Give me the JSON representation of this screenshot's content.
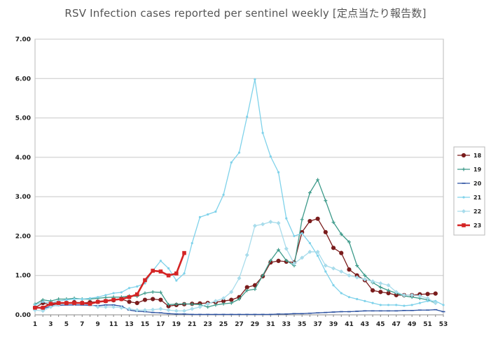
{
  "chart_data": {
    "type": "line",
    "title": "RSV Infection cases reported per sentinel weekly [定点当たり報告数]",
    "xlabel": "",
    "ylabel": "",
    "xlim": [
      1,
      53
    ],
    "ylim": [
      0,
      7
    ],
    "x_ticks": [
      1,
      3,
      5,
      7,
      9,
      11,
      13,
      15,
      17,
      19,
      21,
      23,
      25,
      27,
      29,
      31,
      33,
      35,
      37,
      39,
      41,
      43,
      45,
      47,
      49,
      51,
      53
    ],
    "y_ticks": [
      "0.00",
      "1.00",
      "2.00",
      "3.00",
      "4.00",
      "5.00",
      "6.00",
      "7.00"
    ],
    "grid": "horizontal",
    "legend_position": "right",
    "series": [
      {
        "name": "18",
        "color": "#7a1c1c",
        "marker": "circle",
        "values": [
          0.18,
          0.3,
          0.25,
          0.28,
          0.3,
          0.32,
          0.3,
          0.32,
          0.33,
          0.35,
          0.37,
          0.4,
          0.33,
          0.3,
          0.38,
          0.4,
          0.38,
          0.22,
          0.25,
          0.27,
          0.28,
          0.29,
          0.3,
          0.32,
          0.35,
          0.38,
          0.45,
          0.7,
          0.75,
          0.98,
          1.33,
          1.37,
          1.35,
          1.33,
          2.1,
          2.38,
          2.44,
          2.1,
          1.7,
          1.57,
          1.15,
          1.0,
          0.88,
          0.62,
          0.58,
          0.55,
          0.5,
          0.5,
          0.5,
          0.52,
          0.53,
          0.54
        ]
      },
      {
        "name": "19",
        "color": "#3d9a8a",
        "marker": "cross",
        "values": [
          0.27,
          0.38,
          0.35,
          0.4,
          0.4,
          0.42,
          0.4,
          0.4,
          0.42,
          0.44,
          0.45,
          0.45,
          0.48,
          0.47,
          0.55,
          0.58,
          0.57,
          0.26,
          0.27,
          0.28,
          0.27,
          0.26,
          0.2,
          0.25,
          0.28,
          0.3,
          0.4,
          0.62,
          0.65,
          1.0,
          1.38,
          1.65,
          1.38,
          1.25,
          2.42,
          3.1,
          3.43,
          2.9,
          2.35,
          2.05,
          1.85,
          1.25,
          1.0,
          0.82,
          0.7,
          0.62,
          0.55,
          0.48,
          0.45,
          0.42,
          0.38,
          0.3
        ]
      },
      {
        "name": "20",
        "color": "#2a50a0",
        "marker": "dash",
        "values": [
          0.2,
          0.15,
          0.22,
          0.24,
          0.25,
          0.25,
          0.25,
          0.24,
          0.23,
          0.25,
          0.25,
          0.22,
          0.12,
          0.09,
          0.08,
          0.06,
          0.05,
          0.03,
          0.02,
          0.02,
          0.01,
          0.01,
          0.01,
          0.01,
          0.01,
          0.01,
          0.01,
          0.01,
          0.01,
          0.01,
          0.01,
          0.02,
          0.02,
          0.03,
          0.03,
          0.04,
          0.05,
          0.06,
          0.07,
          0.08,
          0.08,
          0.09,
          0.1,
          0.1,
          0.1,
          0.1,
          0.1,
          0.11,
          0.11,
          0.12,
          0.12,
          0.13,
          0.08
        ]
      },
      {
        "name": "21",
        "color": "#7fd2ea",
        "marker": "dot",
        "values": [
          0.25,
          0.33,
          0.3,
          0.35,
          0.38,
          0.4,
          0.4,
          0.42,
          0.45,
          0.5,
          0.55,
          0.57,
          0.68,
          0.72,
          0.8,
          1.12,
          1.37,
          1.18,
          0.87,
          1.05,
          1.82,
          2.48,
          2.55,
          2.62,
          3.05,
          3.87,
          4.12,
          5.03,
          5.98,
          4.62,
          4.02,
          3.62,
          2.45,
          2.0,
          2.07,
          1.82,
          1.5,
          1.1,
          0.75,
          0.55,
          0.45,
          0.4,
          0.35,
          0.3,
          0.25,
          0.25,
          0.25,
          0.23,
          0.25,
          0.3,
          0.35,
          0.35,
          0.25
        ]
      },
      {
        "name": "22",
        "color": "#a8dceb",
        "marker": "diamond",
        "values": [
          0.12,
          0.1,
          0.2,
          0.25,
          0.3,
          0.28,
          0.3,
          0.25,
          0.2,
          0.2,
          0.2,
          0.18,
          0.15,
          0.12,
          0.12,
          0.13,
          0.15,
          0.12,
          0.1,
          0.1,
          0.15,
          0.2,
          0.28,
          0.35,
          0.42,
          0.58,
          0.93,
          1.52,
          2.26,
          2.3,
          2.36,
          2.33,
          1.68,
          1.3,
          1.45,
          1.6,
          1.6,
          1.25,
          1.18,
          1.1,
          1.0,
          0.95,
          0.9,
          0.85,
          0.8,
          0.75,
          0.58,
          0.5,
          0.5,
          0.48,
          0.42,
          0.3
        ]
      },
      {
        "name": "23",
        "color": "#d42424",
        "marker": "square-bold",
        "values": [
          0.18,
          0.18,
          0.28,
          0.3,
          0.3,
          0.3,
          0.3,
          0.28,
          0.33,
          0.35,
          0.38,
          0.4,
          0.45,
          0.52,
          0.88,
          1.12,
          1.1,
          1.0,
          1.05,
          1.57
        ]
      }
    ]
  }
}
